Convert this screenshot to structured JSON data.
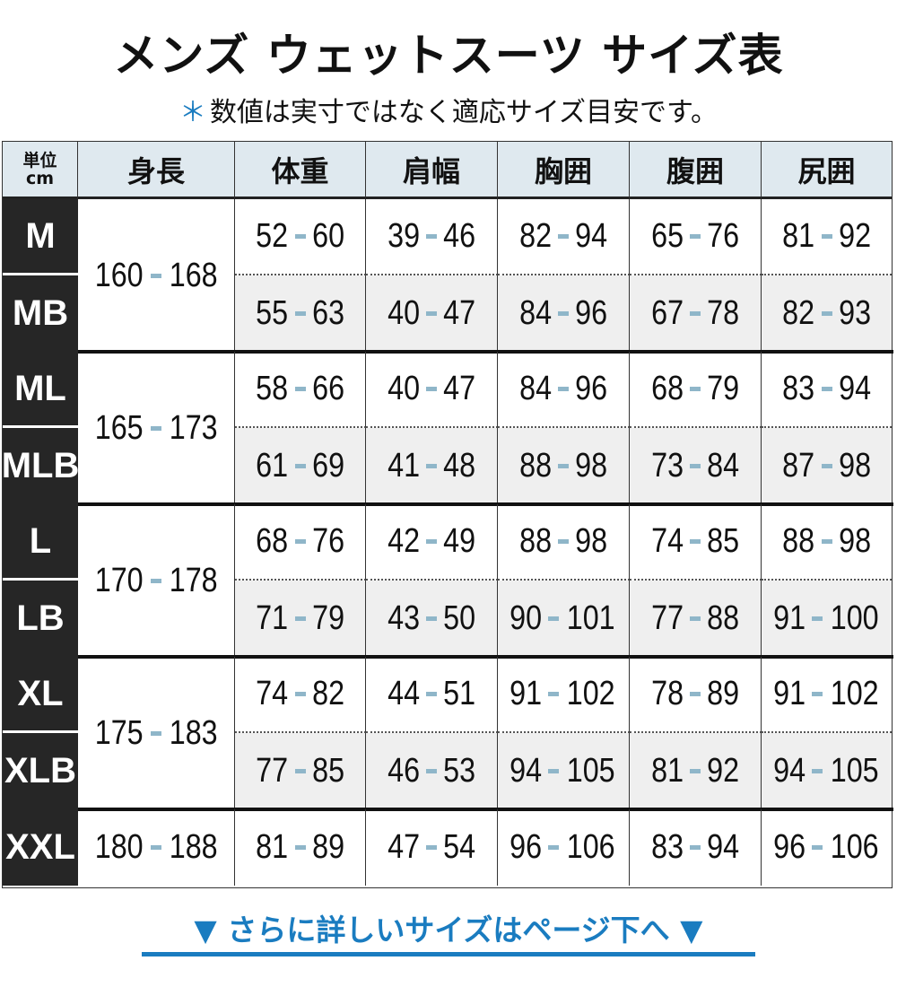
{
  "title": "メンズ ウェットスーツ サイズ表",
  "subtitle": {
    "mark": "＊",
    "text": "数値は実寸ではなく適応サイズ目安です。"
  },
  "table": {
    "unit_top": "単位",
    "unit_bottom": "cm",
    "headers": [
      "身長",
      "体重",
      "肩幅",
      "胸囲",
      "腹囲",
      "尻囲"
    ],
    "groups": [
      {
        "height": [
          "160",
          "168"
        ],
        "rows": [
          {
            "size": "M",
            "values": [
              [
                "52",
                "60"
              ],
              [
                "39",
                "46"
              ],
              [
                "82",
                "94"
              ],
              [
                "65",
                "76"
              ],
              [
                "81",
                "92"
              ]
            ]
          },
          {
            "size": "MB",
            "values": [
              [
                "55",
                "63"
              ],
              [
                "40",
                "47"
              ],
              [
                "84",
                "96"
              ],
              [
                "67",
                "78"
              ],
              [
                "82",
                "93"
              ]
            ]
          }
        ]
      },
      {
        "height": [
          "165",
          "173"
        ],
        "rows": [
          {
            "size": "ML",
            "values": [
              [
                "58",
                "66"
              ],
              [
                "40",
                "47"
              ],
              [
                "84",
                "96"
              ],
              [
                "68",
                "79"
              ],
              [
                "83",
                "94"
              ]
            ]
          },
          {
            "size": "MLB",
            "values": [
              [
                "61",
                "69"
              ],
              [
                "41",
                "48"
              ],
              [
                "88",
                "98"
              ],
              [
                "73",
                "84"
              ],
              [
                "87",
                "98"
              ]
            ]
          }
        ]
      },
      {
        "height": [
          "170",
          "178"
        ],
        "rows": [
          {
            "size": "L",
            "values": [
              [
                "68",
                "76"
              ],
              [
                "42",
                "49"
              ],
              [
                "88",
                "98"
              ],
              [
                "74",
                "85"
              ],
              [
                "88",
                "98"
              ]
            ]
          },
          {
            "size": "LB",
            "values": [
              [
                "71",
                "79"
              ],
              [
                "43",
                "50"
              ],
              [
                "90",
                "101"
              ],
              [
                "77",
                "88"
              ],
              [
                "91",
                "100"
              ]
            ]
          }
        ]
      },
      {
        "height": [
          "175",
          "183"
        ],
        "rows": [
          {
            "size": "XL",
            "values": [
              [
                "74",
                "82"
              ],
              [
                "44",
                "51"
              ],
              [
                "91",
                "102"
              ],
              [
                "78",
                "89"
              ],
              [
                "91",
                "102"
              ]
            ]
          },
          {
            "size": "XLB",
            "values": [
              [
                "77",
                "85"
              ],
              [
                "46",
                "53"
              ],
              [
                "94",
                "105"
              ],
              [
                "81",
                "92"
              ],
              [
                "94",
                "105"
              ]
            ]
          }
        ]
      },
      {
        "height": [
          "180",
          "188"
        ],
        "rows": [
          {
            "size": "XXL",
            "values": [
              [
                "81",
                "89"
              ],
              [
                "47",
                "54"
              ],
              [
                "96",
                "106"
              ],
              [
                "83",
                "94"
              ],
              [
                "96",
                "106"
              ]
            ]
          }
        ]
      }
    ]
  },
  "more_link": {
    "arrow": "▼",
    "text": "さらに詳しいサイズはページ下へ"
  },
  "colors": {
    "accent": "#1a7cc0",
    "dash": "#8fb6c9",
    "header_bg": "#dfe9ef",
    "size_bg": "#262626",
    "alt_row": "#efefef"
  }
}
